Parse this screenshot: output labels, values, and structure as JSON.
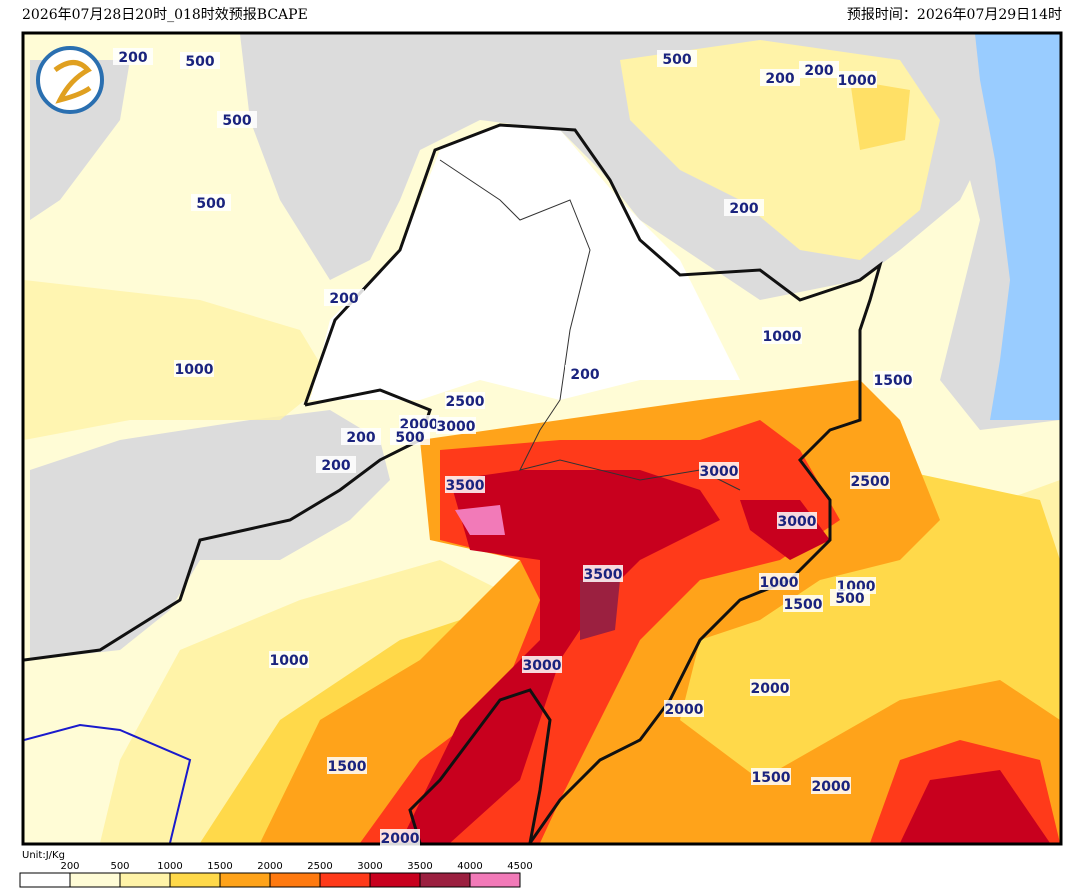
{
  "header": {
    "left": "2026年07月28日20时_018时效预报BCAPE",
    "right": "预报时间：2026年07月29日14时"
  },
  "contour_labels": [
    200,
    500,
    500,
    500,
    500,
    200,
    200,
    1000,
    200,
    1000,
    200,
    1000,
    200,
    1500,
    2500,
    2000,
    3000,
    200,
    500,
    200,
    3500,
    3000,
    2500,
    3000,
    3500,
    1000,
    1000,
    1500,
    500,
    1000,
    3000,
    2000,
    2000,
    1500,
    1500,
    2000,
    2000
  ],
  "legend": {
    "unit": "Unit:J/Kg",
    "levels": [
      200,
      500,
      1000,
      1500,
      2000,
      2500,
      3000,
      3500,
      4000,
      4500
    ],
    "colors": [
      "#ffffff",
      "#fffcd6",
      "#fff3a8",
      "#ffd94a",
      "#ffa31a",
      "#ff7a10",
      "#ff3a1a",
      "#c8001e",
      "#9b2040",
      "#f27ab8"
    ]
  }
}
